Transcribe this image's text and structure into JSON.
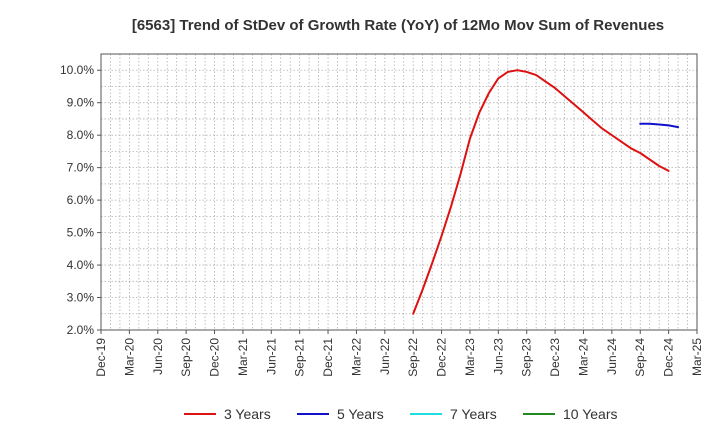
{
  "chart_data": {
    "type": "line",
    "title": "[6563]  Trend of StDev of Growth Rate (YoY) of 12Mo Mov Sum of Revenues",
    "xlabel": "",
    "ylabel": "",
    "ylim": [
      2.0,
      10.5
    ],
    "y_ticks": [
      2.0,
      3.0,
      4.0,
      5.0,
      6.0,
      7.0,
      8.0,
      9.0,
      10.0
    ],
    "y_tick_labels": [
      "2.0%",
      "3.0%",
      "4.0%",
      "5.0%",
      "6.0%",
      "7.0%",
      "8.0%",
      "9.0%",
      "10.0%"
    ],
    "x_tick_labels": [
      "Dec-19",
      "Mar-20",
      "Jun-20",
      "Sep-20",
      "Dec-20",
      "Mar-21",
      "Jun-21",
      "Sep-21",
      "Dec-21",
      "Mar-22",
      "Jun-22",
      "Sep-22",
      "Dec-22",
      "Mar-23",
      "Jun-23",
      "Sep-23",
      "Dec-23",
      "Mar-24",
      "Jun-24",
      "Sep-24",
      "Dec-24",
      "Mar-25"
    ],
    "x_months_note": "x values are months since Dec-19",
    "grid": true,
    "legend_position": "bottom",
    "series": [
      {
        "name": "3 Years",
        "color": "#dd1111",
        "x": [
          33,
          34,
          35,
          36,
          37,
          38,
          39,
          40,
          41,
          42,
          43,
          44,
          45,
          46,
          47,
          48,
          49,
          50,
          51,
          52,
          53,
          54,
          55,
          56,
          57,
          58,
          59,
          60
        ],
        "values": [
          2.5,
          3.25,
          4.05,
          4.9,
          5.8,
          6.8,
          7.9,
          8.7,
          9.3,
          9.75,
          9.95,
          10.0,
          9.95,
          9.85,
          9.65,
          9.45,
          9.2,
          8.95,
          8.7,
          8.45,
          8.2,
          8.0,
          7.8,
          7.6,
          7.45,
          7.25,
          7.05,
          6.9
        ]
      },
      {
        "name": "5 Years",
        "color": "#1111cc",
        "x": [
          57,
          58,
          59,
          60,
          61
        ],
        "values": [
          8.35,
          8.35,
          8.33,
          8.3,
          8.25
        ]
      },
      {
        "name": "7 Years",
        "color": "#22dddd",
        "x": [],
        "values": []
      },
      {
        "name": "10 Years",
        "color": "#228822",
        "x": [],
        "values": []
      }
    ]
  }
}
